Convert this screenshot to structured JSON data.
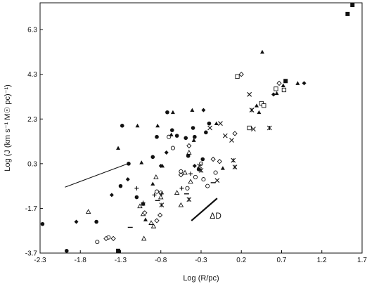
{
  "chart_data": {
    "type": "scatter",
    "title": "",
    "xlabel": "Log (R/pc)",
    "ylabel": "Log (J (km s⁻¹ M☉ pc)⁻¹)",
    "xlim": [
      -2.3,
      1.7
    ],
    "ylim": [
      -3.7,
      7.5
    ],
    "xticks": [
      "-2.3",
      "-1.8",
      "-1.3",
      "-0.8",
      "-0.3",
      "0.2",
      "0.7",
      "1.2",
      "1.7"
    ],
    "yticks": [
      "6.3",
      "4.3",
      "2.3",
      "0.3",
      "-1.7",
      "-3.7"
    ],
    "grid": false,
    "legend": "none",
    "annotation": "ΔD",
    "annotation_segment": {
      "x": [
        -0.42,
        -0.1
      ],
      "y": [
        -2.25,
        -1.25
      ]
    },
    "fit_segment": {
      "x": [
        -1.99,
        -1.21
      ],
      "y": [
        -0.75,
        0.3
      ]
    },
    "series": [
      {
        "marker": "circle-filled",
        "x": [
          -2.27,
          -1.97,
          -1.3,
          -1.1,
          -1.02,
          -0.9,
          -0.85,
          -0.72,
          -0.66,
          -0.6,
          -0.49,
          -0.46,
          -0.4,
          -0.38,
          -0.33,
          -0.28,
          -0.24,
          -0.2,
          -1.6,
          -1.28,
          -1.2
        ],
        "y": [
          -2.4,
          -3.6,
          -0.7,
          -1.2,
          -1.5,
          0.6,
          1.5,
          2.6,
          1.8,
          1.55,
          1.45,
          0.65,
          1.9,
          1.5,
          0.05,
          0.5,
          1.7,
          2.1,
          -2.3,
          2.0,
          0.3
        ]
      },
      {
        "marker": "circle-open",
        "x": [
          -1.59,
          -0.7,
          -0.55,
          -0.47,
          -0.37,
          -0.3,
          -0.27,
          -0.22,
          -0.12,
          -0.85,
          -0.8,
          -0.65,
          -1.45
        ],
        "y": [
          -3.2,
          1.5,
          -0.05,
          -0.8,
          -0.3,
          0.3,
          -0.4,
          -0.7,
          -0.1,
          -0.95,
          -1.0,
          1.0,
          -3.0
        ]
      },
      {
        "marker": "triangle-filled",
        "x": [
          -1.33,
          -1.09,
          -1.04,
          -1.02,
          -0.99,
          -0.9,
          -0.84,
          -0.78,
          -0.67,
          -0.65,
          -0.41,
          -0.39,
          -0.11,
          -0.03,
          0.39,
          0.42,
          0.46,
          0.64,
          0.72,
          0.9
        ],
        "y": [
          1.0,
          2.0,
          0.35,
          -1.5,
          -2.2,
          -0.6,
          2.0,
          0.2,
          1.6,
          2.6,
          2.7,
          1.35,
          2.1,
          0.1,
          2.9,
          2.6,
          5.3,
          3.45,
          3.8,
          3.9
        ]
      },
      {
        "marker": "triangle-open",
        "x": [
          -1.7,
          -1.06,
          -1.02,
          -1.01,
          -0.92,
          -0.89,
          -0.86,
          -0.8,
          -0.6,
          -0.55,
          -0.5,
          -0.43,
          -0.45
        ],
        "y": [
          -1.85,
          -1.6,
          -1.95,
          -3.05,
          -2.35,
          -2.5,
          -0.3,
          -1.2,
          -1.0,
          -1.55,
          -0.1,
          -0.5,
          0.8
        ]
      },
      {
        "marker": "diamond-filled",
        "x": [
          -1.85,
          -1.41,
          -1.21,
          -0.8,
          -0.73,
          -0.38,
          -0.27,
          0.6,
          0.98
        ],
        "y": [
          -2.3,
          -1.1,
          -0.4,
          0.2,
          0.8,
          0.2,
          2.7,
          3.4,
          3.9
        ]
      },
      {
        "marker": "diamond-open",
        "x": [
          -1.48,
          -1.39,
          -1.0,
          -0.85,
          -0.81,
          -0.55,
          -0.45,
          -0.15,
          -0.07,
          0.12,
          0.2,
          0.67
        ],
        "y": [
          -3.05,
          -3.05,
          -1.9,
          -2.25,
          -2.0,
          -0.2,
          1.1,
          0.5,
          0.4,
          1.65,
          4.3,
          3.9
        ]
      },
      {
        "marker": "square-filled",
        "x": [
          -1.33,
          0.75,
          1.52,
          1.58
        ],
        "y": [
          -3.6,
          4.0,
          7.0,
          7.5
        ]
      },
      {
        "marker": "square-open",
        "x": [
          0.15,
          0.3,
          0.45,
          0.48,
          0.63,
          0.73
        ],
        "y": [
          4.2,
          1.9,
          3.0,
          2.9,
          3.65,
          3.6
        ]
      },
      {
        "marker": "cross-x",
        "x": [
          -0.32,
          -0.19,
          -0.1,
          -0.06,
          0.0,
          0.08,
          0.3,
          0.35
        ],
        "y": [
          0.2,
          1.9,
          -0.45,
          2.1,
          1.55,
          1.35,
          3.4,
          1.85
        ]
      },
      {
        "marker": "plus",
        "x": [
          -1.1,
          -1.02,
          -0.88,
          -0.79,
          -0.54,
          -0.43
        ],
        "y": [
          -0.8,
          -1.45,
          -1.1,
          -1.05,
          -0.8,
          -0.15
        ]
      },
      {
        "marker": "dash",
        "x": [
          -1.18,
          -0.84,
          -0.48,
          -0.15
        ],
        "y": [
          -2.55,
          -1.35,
          -1.05,
          -0.55
        ]
      },
      {
        "marker": "asterisk",
        "x": [
          -0.79,
          -0.45,
          -0.3,
          0.1,
          0.12,
          0.33,
          0.55
        ],
        "y": [
          -1.55,
          -1.3,
          0.0,
          0.45,
          0.15,
          2.7,
          1.9
        ]
      }
    ]
  }
}
